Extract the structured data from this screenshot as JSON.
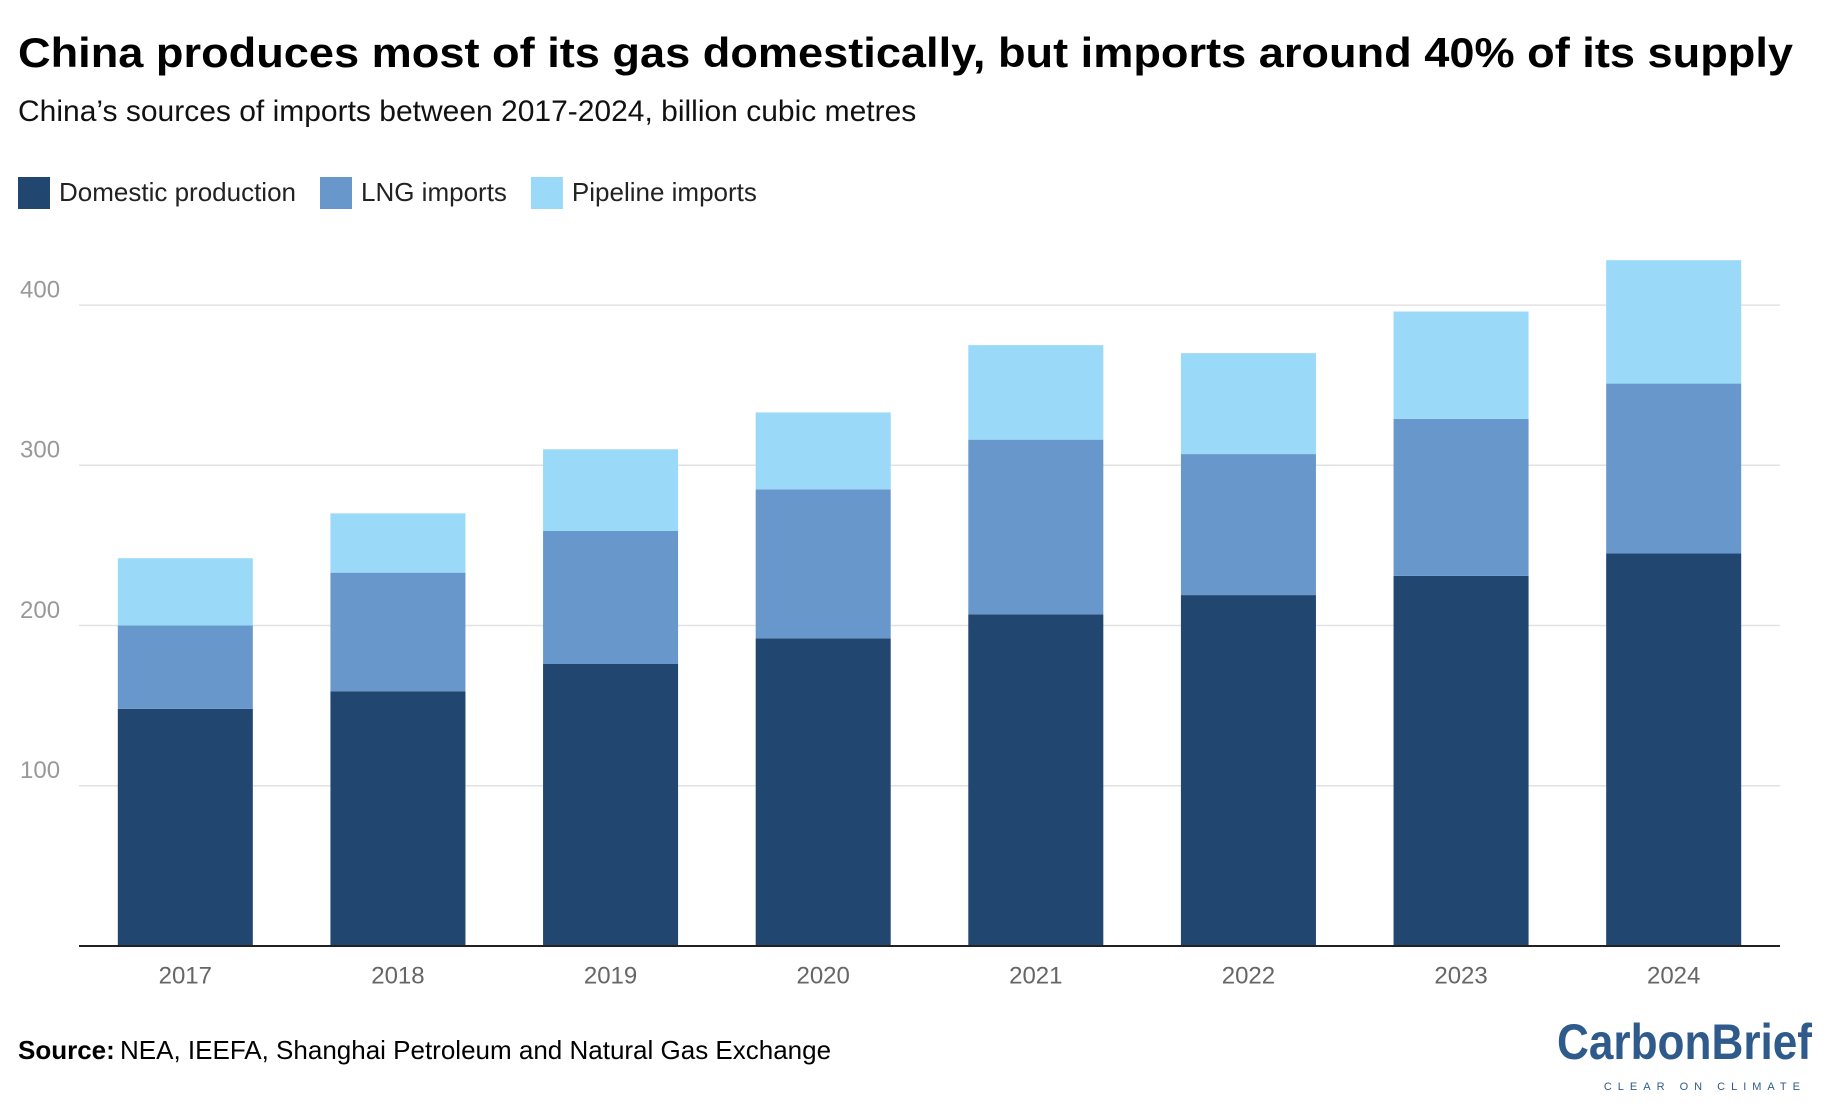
{
  "chart_data": {
    "type": "stacked-bar",
    "title": "China produces most of its gas domestically, but imports around 40% of its supply",
    "subtitle": "China’s sources of imports between 2017-2024, billion cubic metres",
    "categories": [
      "2017",
      "2018",
      "2019",
      "2020",
      "2021",
      "2022",
      "2023",
      "2024"
    ],
    "series": [
      {
        "name": "Domestic production",
        "color": "#21466f",
        "values": [
          148,
          159,
          176,
          192,
          207,
          219,
          231,
          245
        ]
      },
      {
        "name": "LNG imports",
        "color": "#6897cc",
        "values": [
          52,
          74,
          83,
          93,
          109,
          88,
          98,
          106
        ]
      },
      {
        "name": "Pipeline imports",
        "color": "#9ad9f8",
        "values": [
          42,
          37,
          51,
          48,
          59,
          63,
          67,
          77
        ]
      }
    ],
    "ylim": [
      0,
      430
    ],
    "yticks": [
      100,
      200,
      300,
      400
    ],
    "grid": true,
    "legend": "top-left"
  },
  "source": {
    "label": "Source:",
    "text": "NEA, IEEFA, Shanghai Petroleum and Natural Gas Exchange"
  },
  "logo": {
    "name": "CarbonBrief",
    "tagline": "CLEAR ON CLIMATE"
  }
}
